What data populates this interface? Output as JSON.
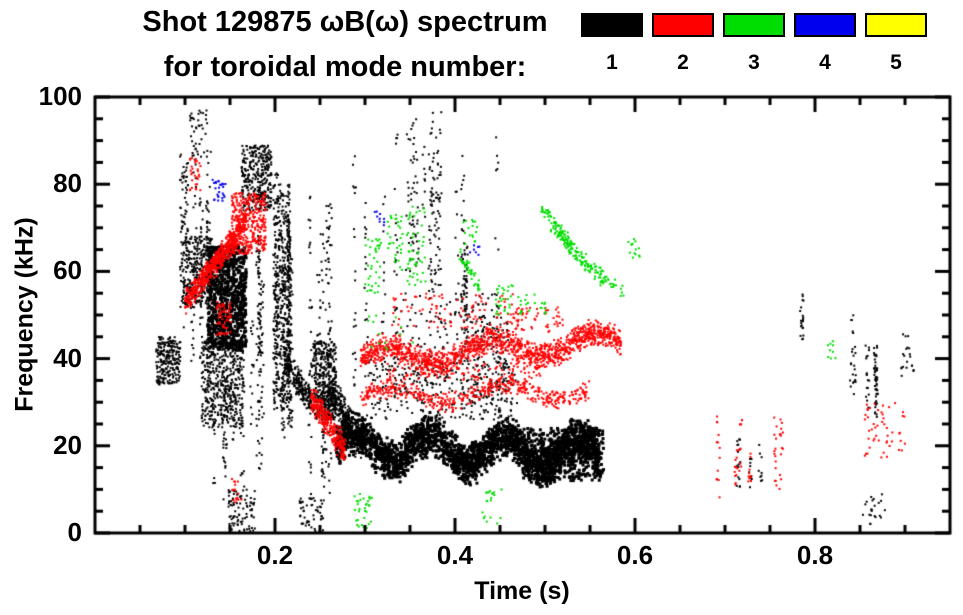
{
  "title": {
    "line1": "Shot 129875 ωB(ω) spectrum",
    "line2": "for toroidal mode number:"
  },
  "legend": {
    "entries": [
      {
        "label": "1",
        "color": "#000000"
      },
      {
        "label": "2",
        "color": "#ff0000"
      },
      {
        "label": "3",
        "color": "#00dd00"
      },
      {
        "label": "4",
        "color": "#0000ee"
      },
      {
        "label": "5",
        "color": "#ffff00"
      }
    ]
  },
  "axes": {
    "xlabel": "Time (s)",
    "ylabel": "Frequency (kHz)",
    "x_range": [
      0,
      0.95
    ],
    "y_range": [
      0,
      100
    ],
    "x_major": [
      0.2,
      0.4,
      0.6,
      0.8
    ],
    "x_tick_labels": [
      "0.2",
      "0.4",
      "0.6",
      "0.8"
    ],
    "x_minor_step": 0.05,
    "y_major": [
      0,
      20,
      40,
      60,
      80,
      100
    ],
    "y_tick_labels": [
      "0",
      "20",
      "40",
      "60",
      "80",
      "100"
    ],
    "y_minor_step": 5
  },
  "chart_data": {
    "type": "scatter",
    "xlabel": "Time (s)",
    "ylabel": "Frequency (kHz)",
    "xlim": [
      0,
      0.95
    ],
    "ylim": [
      0,
      100
    ],
    "series": [
      {
        "name": "toroidal mode n=1",
        "mode": 1,
        "color": "#000000",
        "clusters": [
          {
            "ty": "blob",
            "t": [
              0.068,
              0.095
            ],
            "f": [
              34,
              45
            ],
            "n": 240
          },
          {
            "ty": "streaks",
            "t": [
              0.095,
              0.13
            ],
            "f": [
              38,
              92
            ],
            "k": 8,
            "n": 36
          },
          {
            "ty": "blob",
            "t": [
              0.098,
              0.13
            ],
            "f": [
              52,
              68
            ],
            "n": 300
          },
          {
            "ty": "blob",
            "t": [
              0.105,
              0.125
            ],
            "f": [
              86,
              97
            ],
            "n": 40
          },
          {
            "ty": "blob",
            "t": [
              0.125,
              0.168
            ],
            "f": [
              42,
              66
            ],
            "n": 850,
            "s": 3
          },
          {
            "ty": "blob",
            "t": [
              0.118,
              0.165
            ],
            "f": [
              24,
              44
            ],
            "n": 480
          },
          {
            "ty": "streaks",
            "t": [
              0.13,
              0.18
            ],
            "f": [
              2,
              60
            ],
            "k": 7,
            "n": 32
          },
          {
            "ty": "blob",
            "t": [
              0.148,
              0.178
            ],
            "f": [
              0,
              10
            ],
            "n": 90
          },
          {
            "ty": "blob",
            "t": [
              0.163,
              0.196
            ],
            "f": [
              74,
              89
            ],
            "n": 330
          },
          {
            "ty": "streaks",
            "t": [
              0.18,
              0.196
            ],
            "f": [
              8,
              72
            ],
            "k": 4,
            "n": 40
          },
          {
            "ty": "streaks",
            "t": [
              0.196,
              0.218
            ],
            "f": [
              4,
              86
            ],
            "k": 6,
            "n": 80
          },
          {
            "ty": "blob",
            "t": [
              0.198,
              0.216
            ],
            "f": [
              28,
              80
            ],
            "n": 400
          },
          {
            "ty": "chirp",
            "t": [
              0.21,
              0.24
            ],
            "f": [
              40,
              30
            ],
            "hw": 4,
            "n": 240
          },
          {
            "ty": "streaks",
            "t": [
              0.234,
              0.262
            ],
            "f": [
              5,
              82
            ],
            "k": 6,
            "n": 40
          },
          {
            "ty": "blob",
            "t": [
              0.242,
              0.268
            ],
            "f": [
              26,
              44
            ],
            "n": 380
          },
          {
            "ty": "blob",
            "t": [
              0.225,
              0.255
            ],
            "f": [
              0,
              8
            ],
            "n": 55
          },
          {
            "ty": "band",
            "t": [
              0.258,
              0.3
            ],
            "fc": [
              30,
              22
            ],
            "amp": 2,
            "cyc": 1,
            "hw": 5,
            "n": 380
          },
          {
            "ty": "band",
            "t": [
              0.268,
              0.56
            ],
            "fc": [
              20,
              18
            ],
            "amp": 3.2,
            "cyc": 3.5,
            "hw": 5.5,
            "n": 2500,
            "s": 3
          },
          {
            "ty": "blob",
            "t": [
              0.475,
              0.565
            ],
            "f": [
              12,
              24
            ],
            "n": 420,
            "s": 3
          },
          {
            "ty": "blob",
            "t": [
              0.3,
              0.47
            ],
            "f": [
              26,
              40
            ],
            "n": 300
          },
          {
            "ty": "streaks",
            "t": [
              0.28,
              0.45
            ],
            "f": [
              28,
              95
            ],
            "k": 13,
            "n": 24
          },
          {
            "ty": "blob",
            "t": [
              0.345,
              0.36
            ],
            "f": [
              60,
              96
            ],
            "n": 55
          },
          {
            "ty": "blob",
            "t": [
              0.37,
              0.385
            ],
            "f": [
              55,
              97
            ],
            "n": 65
          },
          {
            "ty": "blob",
            "t": [
              0.33,
              0.45
            ],
            "f": [
              42,
              55
            ],
            "n": 85
          },
          {
            "ty": "blob",
            "t": [
              0.42,
              0.46
            ],
            "f": [
              30,
              50
            ],
            "n": 120
          },
          {
            "ty": "streaks",
            "t": [
              0.71,
              0.74
            ],
            "f": [
              8,
              24
            ],
            "k": 3,
            "n": 16
          },
          {
            "ty": "streaks",
            "t": [
              0.78,
              0.795
            ],
            "f": [
              42,
              56
            ],
            "k": 2,
            "n": 14
          },
          {
            "ty": "streaks",
            "t": [
              0.832,
              0.848
            ],
            "f": [
              28,
              52
            ],
            "k": 2,
            "n": 18
          },
          {
            "ty": "streaks",
            "t": [
              0.855,
              0.878
            ],
            "f": [
              26,
              52
            ],
            "k": 4,
            "n": 22
          },
          {
            "ty": "blob",
            "t": [
              0.853,
              0.878
            ],
            "f": [
              2,
              9
            ],
            "n": 22
          },
          {
            "ty": "blob",
            "t": [
              0.895,
              0.91
            ],
            "f": [
              36,
              46
            ],
            "n": 20
          }
        ]
      },
      {
        "name": "toroidal mode n=2",
        "mode": 2,
        "color": "#ff0000",
        "clusters": [
          {
            "ty": "blob",
            "t": [
              0.105,
              0.118
            ],
            "f": [
              78,
              86
            ],
            "n": 30
          },
          {
            "ty": "chirp",
            "t": [
              0.1,
              0.155
            ],
            "f": [
              53,
              67
            ],
            "hw": 3.2,
            "n": 380
          },
          {
            "ty": "chirp",
            "t": [
              0.118,
              0.168
            ],
            "f": [
              58,
              72
            ],
            "hw": 2.6,
            "n": 280
          },
          {
            "ty": "blob",
            "t": [
              0.152,
              0.19
            ],
            "f": [
              64,
              78
            ],
            "n": 340
          },
          {
            "ty": "blob",
            "t": [
              0.135,
              0.152
            ],
            "f": [
              45,
              53
            ],
            "n": 60
          },
          {
            "ty": "blob",
            "t": [
              0.152,
              0.163
            ],
            "f": [
              7,
              13
            ],
            "n": 16
          },
          {
            "ty": "chirp",
            "t": [
              0.24,
              0.278
            ],
            "f": [
              31,
              19
            ],
            "hw": 4,
            "n": 300
          },
          {
            "ty": "band",
            "t": [
              0.295,
              0.585
            ],
            "fc": [
              40,
              44
            ],
            "amp": 2.2,
            "cyc": 2.5,
            "hw": 3.4,
            "n": 1400
          },
          {
            "ty": "band",
            "t": [
              0.295,
              0.55
            ],
            "fc": [
              31,
              33
            ],
            "amp": 2,
            "cyc": 2,
            "hw": 2.6,
            "n": 480
          },
          {
            "ty": "blob",
            "t": [
              0.32,
              0.5
            ],
            "f": [
              35,
              39
            ],
            "n": 110
          },
          {
            "ty": "blob",
            "t": [
              0.33,
              0.47
            ],
            "f": [
              47,
              55
            ],
            "n": 100
          },
          {
            "ty": "blob",
            "t": [
              0.46,
              0.52
            ],
            "f": [
              46,
              52
            ],
            "n": 55
          },
          {
            "ty": "streaks",
            "t": [
              0.69,
              0.77
            ],
            "f": [
              7,
              28
            ],
            "k": 6,
            "n": 14
          },
          {
            "ty": "blob",
            "t": [
              0.855,
              0.9
            ],
            "f": [
              17,
              30
            ],
            "n": 50
          }
        ]
      },
      {
        "name": "toroidal mode n=3",
        "mode": 3,
        "color": "#00dd00",
        "clusters": [
          {
            "ty": "blob",
            "t": [
              0.288,
              0.308
            ],
            "f": [
              1,
              9
            ],
            "n": 32
          },
          {
            "ty": "blob",
            "t": [
              0.3,
              0.318
            ],
            "f": [
              55,
              68
            ],
            "n": 36
          },
          {
            "ty": "blob",
            "t": [
              0.325,
              0.342
            ],
            "f": [
              60,
              73
            ],
            "n": 32
          },
          {
            "ty": "blob",
            "t": [
              0.346,
              0.368
            ],
            "f": [
              55,
              75
            ],
            "n": 50
          },
          {
            "ty": "blob",
            "t": [
              0.3,
              0.36
            ],
            "f": [
              42,
              50
            ],
            "n": 14
          },
          {
            "ty": "chirp",
            "t": [
              0.405,
              0.428
            ],
            "f": [
              64,
              56
            ],
            "hw": 2,
            "n": 42
          },
          {
            "ty": "blob",
            "t": [
              0.408,
              0.425
            ],
            "f": [
              66,
              72
            ],
            "n": 16
          },
          {
            "ty": "blob",
            "t": [
              0.43,
              0.452
            ],
            "f": [
              2,
              10
            ],
            "n": 20
          },
          {
            "ty": "blob",
            "t": [
              0.445,
              0.468
            ],
            "f": [
              50,
              57
            ],
            "n": 28
          },
          {
            "ty": "chirp",
            "t": [
              0.495,
              0.532
            ],
            "f": [
              75,
              66
            ],
            "hw": 1.8,
            "n": 65
          },
          {
            "ty": "chirp",
            "t": [
              0.506,
              0.548
            ],
            "f": [
              70,
              62
            ],
            "hw": 1.8,
            "n": 60
          },
          {
            "ty": "chirp",
            "t": [
              0.522,
              0.566
            ],
            "f": [
              66,
              57
            ],
            "hw": 1.6,
            "n": 50
          },
          {
            "ty": "chirp",
            "t": [
              0.548,
              0.588
            ],
            "f": [
              62,
              55
            ],
            "hw": 1.5,
            "n": 38
          },
          {
            "ty": "blob",
            "t": [
              0.59,
              0.608
            ],
            "f": [
              63,
              68
            ],
            "n": 14
          },
          {
            "ty": "blob",
            "t": [
              0.47,
              0.502
            ],
            "f": [
              50,
              55
            ],
            "n": 22
          },
          {
            "ty": "blob",
            "t": [
              0.814,
              0.828
            ],
            "f": [
              38,
              44
            ],
            "n": 9
          }
        ]
      },
      {
        "name": "toroidal mode n=4",
        "mode": 4,
        "color": "#0000ee",
        "clusters": [
          {
            "ty": "blob",
            "t": [
              0.13,
              0.145
            ],
            "f": [
              76,
              81
            ],
            "n": 26
          },
          {
            "ty": "blob",
            "t": [
              0.31,
              0.322
            ],
            "f": [
              70,
              74
            ],
            "n": 9
          },
          {
            "ty": "blob",
            "t": [
              0.415,
              0.428
            ],
            "f": [
              63,
              66
            ],
            "n": 7
          }
        ]
      },
      {
        "name": "toroidal mode n=5",
        "mode": 5,
        "color": "#ffff00",
        "clusters": []
      }
    ]
  }
}
